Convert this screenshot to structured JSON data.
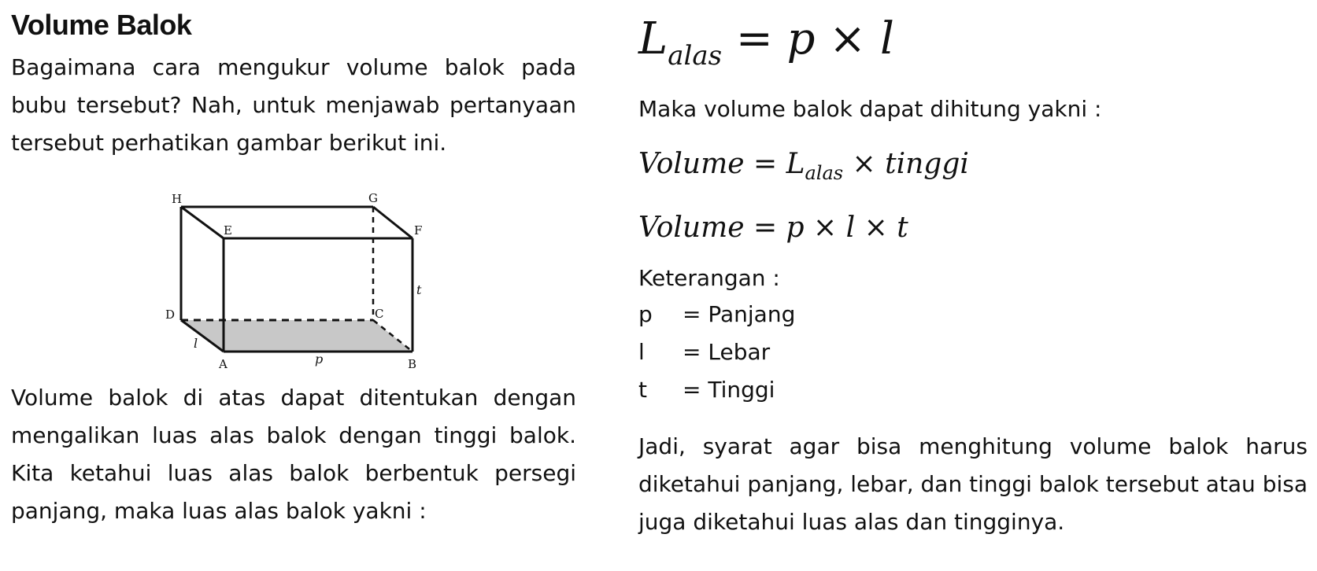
{
  "left": {
    "title": "Volume Balok",
    "intro": "Bagaimana cara mengukur volume balok pada bubu tersebut? Nah, untuk menjawab pertanyaan tersebut perhatikan gambar berikut ini.",
    "figure_labels": {
      "H": "H",
      "G": "G",
      "E": "E",
      "F": "F",
      "D": "D",
      "C": "C",
      "A": "A",
      "B": "B",
      "t": "t",
      "l": "l",
      "p": "p"
    },
    "explanation": "Volume balok di atas dapat ditentukan dengan mengalikan luas alas balok dengan tinggi balok. Kita ketahui luas alas balok berbentuk persegi panjang, maka luas alas balok yakni :"
  },
  "right": {
    "formula_base": {
      "L": "L",
      "sub": "alas",
      "rhs": " = p × l"
    },
    "maka": "Maka volume balok dapat dihitung yakni :",
    "formula_volume_1": {
      "lhs": "Volume = ",
      "L": "L",
      "sub": "alas",
      "rhs": " × tinggi"
    },
    "formula_volume_2": "Volume = p × l × t",
    "keterangan_title": "Keterangan :",
    "keterangan": [
      {
        "sym": "p",
        "desc": "= Panjang"
      },
      {
        "sym": "l",
        "desc": "= Lebar"
      },
      {
        "sym": "t",
        "desc": "= Tinggi"
      }
    ],
    "closing": "Jadi, syarat agar bisa menghitung volume balok harus diketahui panjang, lebar, dan tinggi balok tersebut atau bisa juga diketahui luas alas dan tingginya."
  },
  "colors": {
    "text": "#111111",
    "base_fill": "#c8c8c8",
    "background": "#ffffff"
  }
}
